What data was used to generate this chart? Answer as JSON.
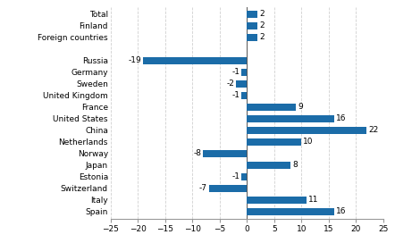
{
  "categories": [
    "Spain",
    "Italy",
    "Switzerland",
    "Estonia",
    "Japan",
    "Norway",
    "Netherlands",
    "China",
    "United States",
    "France",
    "United Kingdom",
    "Sweden",
    "Germany",
    "Russia",
    "",
    "Foreign countries",
    "Finland",
    "Total"
  ],
  "values": [
    16,
    11,
    -7,
    -1,
    8,
    -8,
    10,
    22,
    16,
    9,
    -1,
    -2,
    -1,
    -19,
    null,
    2,
    2,
    2
  ],
  "bar_color": "#1b6ca8",
  "xlim": [
    -25,
    25
  ],
  "xticks": [
    -25,
    -20,
    -15,
    -10,
    -5,
    0,
    5,
    10,
    15,
    20,
    25
  ],
  "grid_color": "#d0d0d0",
  "label_fontsize": 6.5,
  "value_fontsize": 6.5,
  "bar_height": 0.55
}
